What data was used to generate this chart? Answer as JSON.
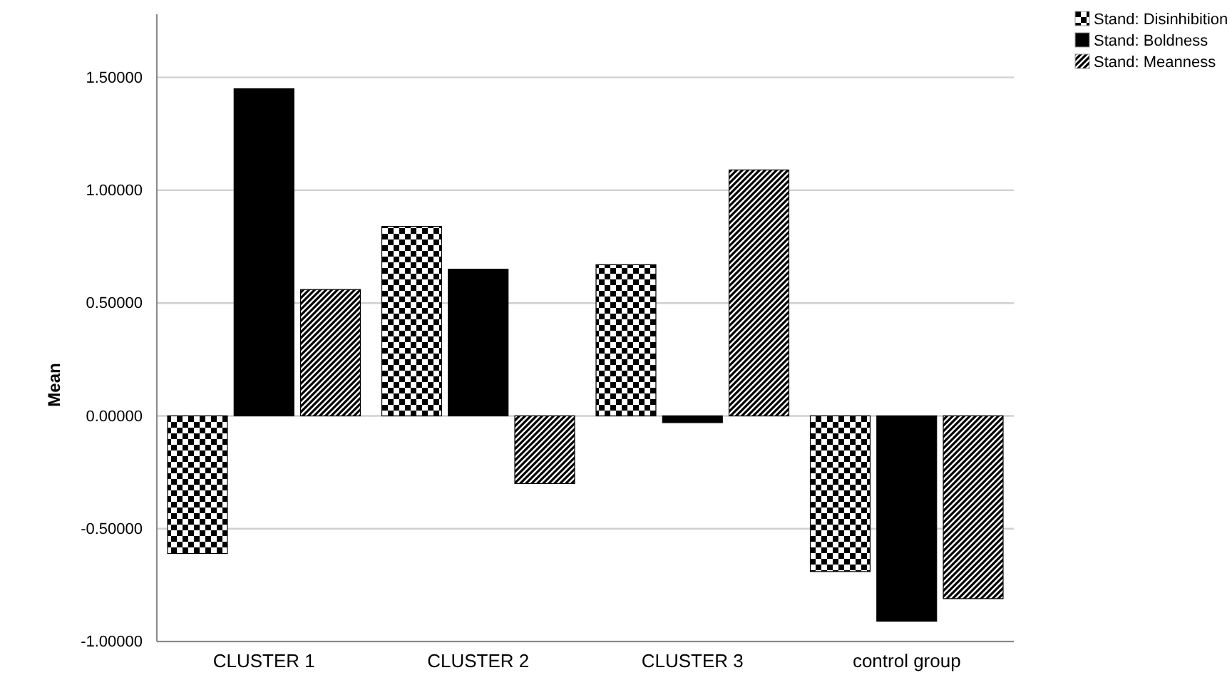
{
  "chart_data": {
    "type": "bar",
    "ylabel": "Mean",
    "categories": [
      "CLUSTER 1",
      "CLUSTER 2",
      "CLUSTER 3",
      "control group"
    ],
    "series": [
      {
        "name": "Stand:  Disinhibition",
        "color": "#000000",
        "values": [
          -0.61,
          0.84,
          0.67,
          -0.69
        ]
      },
      {
        "name": "Stand:  Boldness",
        "color": "#000000",
        "values": [
          1.45,
          0.65,
          -0.03,
          -0.91
        ]
      },
      {
        "name": "Stand:  Meanness",
        "color": "#000000",
        "values": [
          0.56,
          -0.3,
          1.09,
          -0.81
        ]
      }
    ],
    "ylim": [
      -1,
      1.78
    ],
    "yticks": [
      {
        "value": -1,
        "label": "-1.00000"
      },
      {
        "value": -0.5,
        "label": "-0.50000"
      },
      {
        "value": 0,
        "label": "0.00000"
      },
      {
        "value": 0.5,
        "label": "0.50000"
      },
      {
        "value": 1,
        "label": "1.00000"
      },
      {
        "value": 1.5,
        "label": "1.50000"
      }
    ],
    "grid": "y",
    "legend": "top right"
  }
}
